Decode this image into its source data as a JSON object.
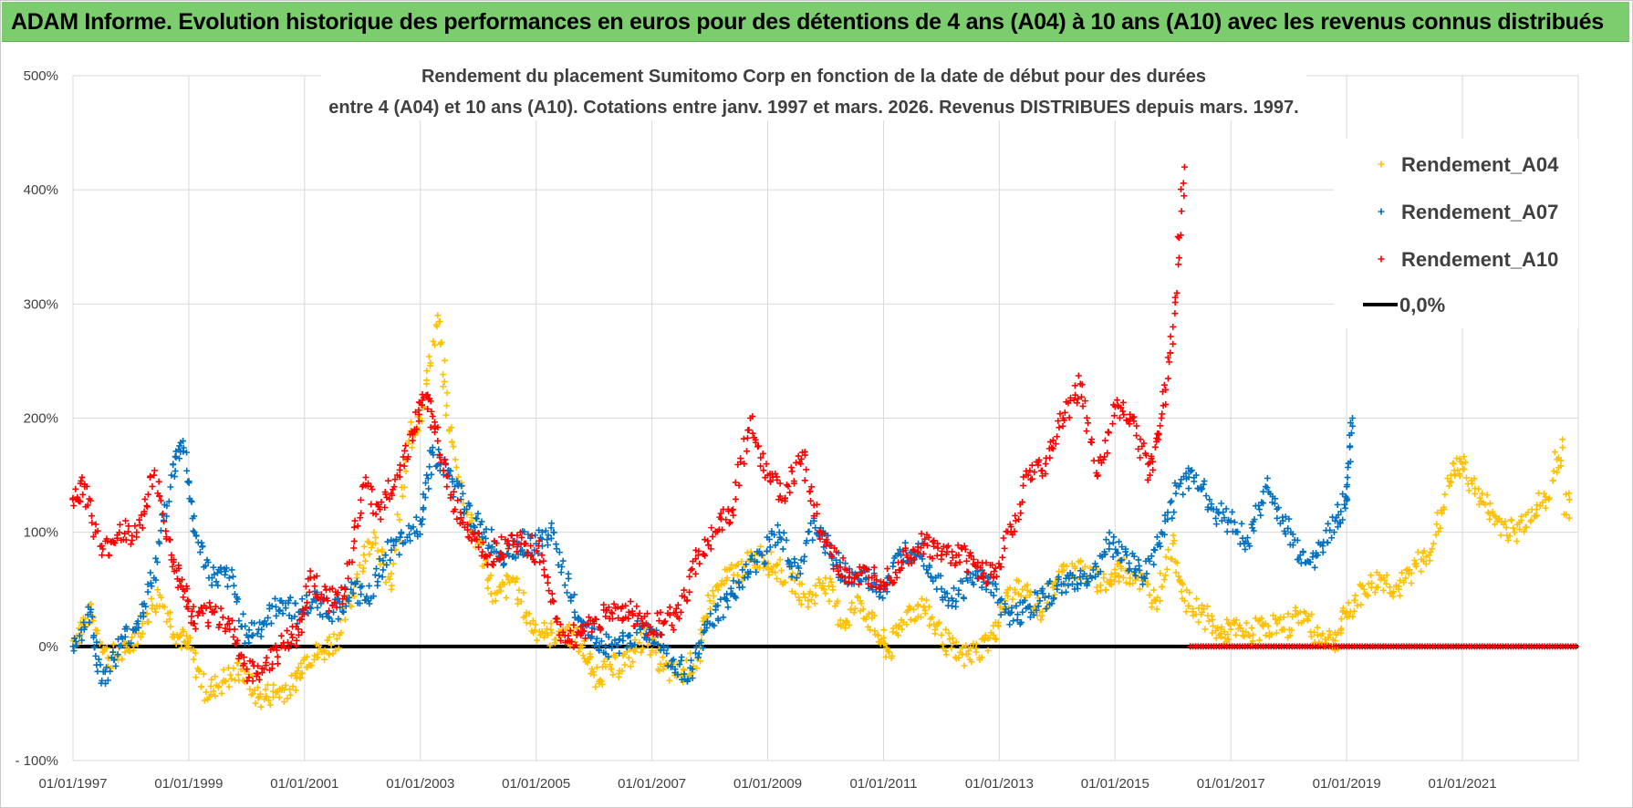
{
  "header": {
    "title": "ADAM Informe. Evolution historique des performances en euros pour des détentions de 4 ans (A04) à 10 ans (A10) avec les revenus connus distribués"
  },
  "chart_data": {
    "type": "scatter",
    "title_line1": "Rendement du placement Sumitomo Corp en fonction de la date de début pour des durées",
    "title_line2": "entre 4 (A04) et 10 ans (A10).  Cotations entre janv. 1997 et mars. 2026. Revenus DISTRIBUES depuis mars. 1997.",
    "xlabel": "",
    "ylabel": "",
    "ylim": [
      -100,
      500
    ],
    "xlim": [
      1997.0,
      2023.0
    ],
    "grid": true,
    "legend_position": "top-right",
    "y_tick_labels": [
      "- 100%",
      "0%",
      "100%",
      "200%",
      "300%",
      "400%",
      "500%"
    ],
    "y_tick_values": [
      -100,
      0,
      100,
      200,
      300,
      400,
      500
    ],
    "x_tick_labels": [
      "01/01/1997",
      "01/01/1999",
      "01/01/2001",
      "01/01/2003",
      "01/01/2005",
      "01/01/2007",
      "01/01/2009",
      "01/01/2011",
      "01/01/2013",
      "01/01/2015",
      "01/01/2017",
      "01/01/2019",
      "01/01/2021"
    ],
    "x_tick_values": [
      1997,
      1999,
      2001,
      2003,
      2005,
      2007,
      2009,
      2011,
      2013,
      2015,
      2017,
      2019,
      2021
    ],
    "series": [
      {
        "name": "Rendement_A04",
        "color": "#ffc000",
        "x": [
          1997.0,
          1997.3,
          1997.6,
          1997.9,
          1998.2,
          1998.5,
          1998.8,
          1999.0,
          1999.3,
          1999.6,
          1999.9,
          2000.2,
          2000.5,
          2000.8,
          2001.0,
          2001.3,
          2001.6,
          2001.9,
          2002.2,
          2002.5,
          2002.8,
          2003.0,
          2003.3,
          2003.5,
          2003.8,
          2004.0,
          2004.3,
          2004.6,
          2004.9,
          2005.2,
          2005.5,
          2005.8,
          2006.0,
          2006.3,
          2006.6,
          2006.9,
          2007.2,
          2007.5,
          2007.8,
          2008.0,
          2008.3,
          2008.6,
          2008.9,
          2009.1,
          2009.4,
          2009.7,
          2010.0,
          2010.3,
          2010.6,
          2010.9,
          2011.1,
          2011.4,
          2011.7,
          2012.0,
          2012.3,
          2012.6,
          2012.9,
          2013.1,
          2013.4,
          2013.7,
          2014.0,
          2014.3,
          2014.6,
          2014.9,
          2015.1,
          2015.4,
          2015.7,
          2016.0,
          2016.2,
          2016.5,
          2016.8,
          2017.0,
          2017.3,
          2017.6,
          2017.9,
          2018.2,
          2018.5,
          2018.8,
          2019.0,
          2019.3,
          2019.6,
          2019.9,
          2020.2,
          2020.5,
          2020.8,
          2021.0,
          2021.3,
          2021.6,
          2021.9,
          2022.2,
          2022.5
        ],
        "values": [
          5,
          30,
          -10,
          -5,
          20,
          45,
          10,
          0,
          -40,
          -30,
          -20,
          -45,
          -40,
          -35,
          -10,
          -5,
          10,
          60,
          100,
          50,
          180,
          200,
          290,
          190,
          120,
          90,
          40,
          60,
          20,
          10,
          15,
          0,
          -25,
          -20,
          -10,
          10,
          -20,
          -25,
          -10,
          40,
          60,
          70,
          80,
          70,
          60,
          40,
          60,
          20,
          40,
          10,
          -5,
          30,
          35,
          10,
          -10,
          -5,
          10,
          40,
          50,
          30,
          60,
          70,
          60,
          55,
          70,
          60,
          40,
          90,
          40,
          30,
          10,
          15,
          10,
          20,
          15,
          30,
          10,
          5,
          30,
          50,
          60,
          50,
          70,
          90,
          150,
          160,
          130,
          110,
          100,
          120,
          130
        ],
        "extra_x": [
          2022.6,
          2022.7,
          2022.8
        ],
        "extra_values": [
          160,
          170,
          120
        ]
      },
      {
        "name": "Rendement_A07",
        "color": "#0070c0",
        "x": [
          1997.0,
          1997.3,
          1997.5,
          1997.8,
          1998.1,
          1998.4,
          1998.7,
          1998.9,
          1999.1,
          1999.4,
          1999.7,
          2000.0,
          2000.3,
          2000.6,
          2000.9,
          2001.2,
          2001.5,
          2001.8,
          2002.1,
          2002.4,
          2002.7,
          2003.0,
          2003.2,
          2003.5,
          2003.8,
          2004.1,
          2004.4,
          2004.7,
          2005.0,
          2005.3,
          2005.6,
          2005.9,
          2006.2,
          2006.5,
          2006.8,
          2007.1,
          2007.4,
          2007.7,
          2008.0,
          2008.3,
          2008.6,
          2008.9,
          2009.2,
          2009.5,
          2009.8,
          2010.1,
          2010.4,
          2010.7,
          2011.0,
          2011.3,
          2011.6,
          2011.9,
          2012.2,
          2012.5,
          2012.8,
          2013.1,
          2013.4,
          2013.7,
          2014.0,
          2014.3,
          2014.6,
          2014.9,
          2015.2,
          2015.5,
          2015.8,
          2016.1,
          2016.4,
          2016.7,
          2017.0,
          2017.3,
          2017.6,
          2017.9,
          2018.2,
          2018.5,
          2018.8,
          2019.0,
          2019.1
        ],
        "values": [
          0,
          30,
          -30,
          0,
          20,
          60,
          150,
          180,
          100,
          60,
          60,
          10,
          20,
          40,
          30,
          40,
          30,
          50,
          40,
          80,
          90,
          110,
          170,
          150,
          120,
          100,
          80,
          90,
          90,
          100,
          40,
          10,
          0,
          5,
          15,
          10,
          -20,
          -20,
          20,
          40,
          60,
          80,
          100,
          60,
          110,
          80,
          60,
          60,
          50,
          80,
          90,
          60,
          40,
          60,
          60,
          30,
          30,
          40,
          50,
          60,
          60,
          90,
          80,
          60,
          100,
          140,
          150,
          120,
          110,
          90,
          140,
          110,
          80,
          80,
          110,
          130,
          200
        ]
      },
      {
        "name": "Rendement_A10",
        "color": "#ff0000",
        "x": [
          1997.0,
          1997.2,
          1997.5,
          1997.8,
          1998.1,
          1998.4,
          1998.7,
          1998.9,
          1999.1,
          1999.4,
          1999.7,
          2000.0,
          2000.3,
          2000.6,
          2000.9,
          2001.1,
          2001.4,
          2001.7,
          2002.0,
          2002.3,
          2002.6,
          2002.9,
          2003.1,
          2003.3,
          2003.6,
          2003.9,
          2004.2,
          2004.5,
          2004.8,
          2005.1,
          2005.4,
          2005.7,
          2006.0,
          2006.3,
          2006.6,
          2006.9,
          2007.2,
          2007.5,
          2007.8,
          2008.1,
          2008.4,
          2008.7,
          2009.0,
          2009.3,
          2009.6,
          2009.9,
          2010.2,
          2010.5,
          2010.8,
          2011.1,
          2011.4,
          2011.7,
          2012.0,
          2012.3,
          2012.6,
          2012.9,
          2013.2,
          2013.5,
          2013.8,
          2014.1,
          2014.4,
          2014.7,
          2015.0,
          2015.3,
          2015.6,
          2015.8,
          2016.0,
          2016.2
        ],
        "values": [
          130,
          140,
          80,
          100,
          100,
          150,
          80,
          50,
          20,
          30,
          20,
          -20,
          -20,
          0,
          10,
          60,
          40,
          50,
          140,
          120,
          150,
          190,
          220,
          180,
          120,
          100,
          80,
          90,
          90,
          80,
          10,
          10,
          20,
          30,
          30,
          20,
          20,
          30,
          80,
          100,
          120,
          200,
          150,
          130,
          170,
          100,
          70,
          60,
          60,
          60,
          80,
          90,
          80,
          80,
          70,
          60,
          100,
          150,
          160,
          200,
          230,
          150,
          210,
          200,
          150,
          200,
          280,
          420
        ]
      },
      {
        "name": "0,0%",
        "color": "#000000",
        "x": [
          1997.0,
          2023.0
        ],
        "values": [
          0,
          0
        ]
      }
    ],
    "a10_zero_run": {
      "x_start": 2016.3,
      "x_end": 2023.0,
      "value": 0
    }
  }
}
